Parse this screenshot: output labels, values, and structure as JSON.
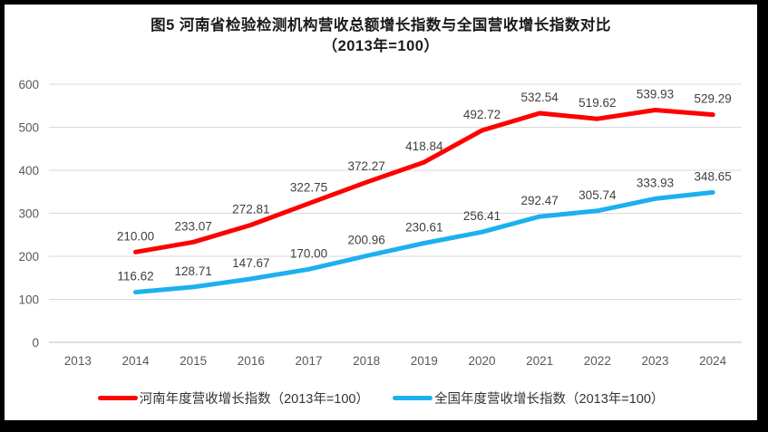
{
  "figure": {
    "title_line1": "图5  河南省检验检测机构营收总额增长指数与全国营收增长指数对比",
    "title_line2": "（2013年=100）"
  },
  "chart_data": {
    "type": "line",
    "title": "图5 河南省检验检测机构营收总额增长指数与全国营收增长指数对比（2013年=100）",
    "categories": [
      "2013",
      "2014",
      "2015",
      "2016",
      "2017",
      "2018",
      "2019",
      "2020",
      "2021",
      "2022",
      "2023",
      "2024"
    ],
    "series": [
      {
        "name": "河南年度营收增长指数（2013年=100）",
        "color": "#fe0000",
        "start_index": 1,
        "values": [
          210.0,
          233.07,
          272.81,
          322.75,
          372.27,
          418.84,
          492.72,
          532.54,
          519.62,
          539.93,
          529.29
        ]
      },
      {
        "name": "全国年度营收增长指数（2013年=100）",
        "color": "#1cb0ee",
        "start_index": 1,
        "values": [
          116.62,
          128.71,
          147.67,
          170.0,
          200.96,
          230.61,
          256.41,
          292.47,
          305.74,
          333.93,
          348.65
        ]
      }
    ],
    "xlabel": "",
    "ylabel": "",
    "ylim": [
      0,
      600
    ],
    "yticks": [
      0,
      100,
      200,
      300,
      400,
      500,
      600
    ],
    "grid": true,
    "data_labels": true,
    "data_label_decimals": 2,
    "legend_position": "bottom"
  },
  "style": {
    "grid_color": "#d9d9d9",
    "axis_line_color": "#bfbfbf",
    "line_width": 5
  }
}
